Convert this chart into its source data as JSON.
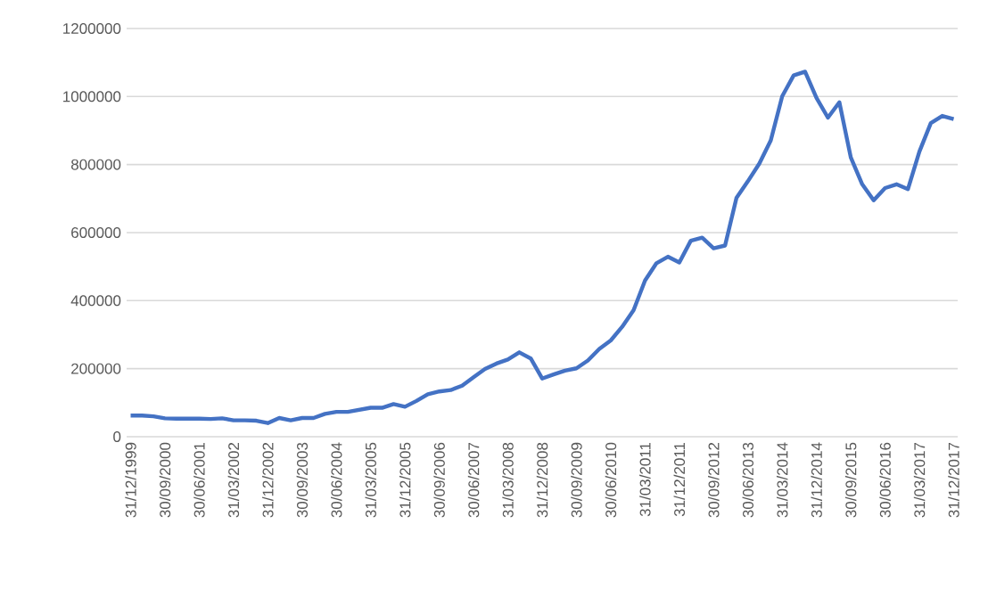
{
  "chart_data": {
    "type": "line",
    "categories": [
      "31/12/1999",
      null,
      null,
      "30/09/2000",
      null,
      null,
      "30/06/2001",
      null,
      null,
      "31/03/2002",
      null,
      null,
      "31/12/2002",
      null,
      null,
      "30/09/2003",
      null,
      null,
      "30/06/2004",
      null,
      null,
      "31/03/2005",
      null,
      null,
      "31/12/2005",
      null,
      null,
      "30/09/2006",
      null,
      null,
      "30/06/2007",
      null,
      null,
      "31/03/2008",
      null,
      null,
      "31/12/2008",
      null,
      null,
      "30/09/2009",
      null,
      null,
      "30/06/2010",
      null,
      null,
      "31/03/2011",
      null,
      null,
      "31/12/2011",
      null,
      null,
      "30/09/2012",
      null,
      null,
      "30/06/2013",
      null,
      null,
      "31/03/2014",
      null,
      null,
      "31/12/2014",
      null,
      null,
      "30/09/2015",
      null,
      null,
      "30/06/2016",
      null,
      null,
      "31/03/2017",
      null,
      null,
      "31/12/2017"
    ],
    "series": [
      {
        "color": "#4472c4",
        "values": [
          62000,
          62000,
          60000,
          54000,
          53000,
          53000,
          53000,
          52000,
          54000,
          48000,
          48000,
          47000,
          40000,
          55000,
          48000,
          55000,
          55000,
          67000,
          73000,
          73000,
          79000,
          85000,
          85000,
          96000,
          88000,
          105000,
          125000,
          133000,
          137000,
          150000,
          175000,
          199000,
          215000,
          227000,
          248000,
          230000,
          171000,
          183000,
          194000,
          201000,
          224000,
          258000,
          283000,
          323000,
          372000,
          459000,
          510000,
          529000,
          512000,
          576000,
          585000,
          554000,
          562000,
          702000,
          751000,
          803000,
          871000,
          1001000,
          1062000,
          1073000,
          996000,
          938000,
          983000,
          821000,
          742000,
          695000,
          731000,
          742000,
          728000,
          838000,
          922000,
          943000,
          934000
        ]
      }
    ],
    "ylim": [
      0,
      1200000
    ],
    "yticks": [
      0,
      200000,
      400000,
      600000,
      800000,
      1000000,
      1200000
    ],
    "grid": "y",
    "marker": "none",
    "line_style": "solid"
  }
}
